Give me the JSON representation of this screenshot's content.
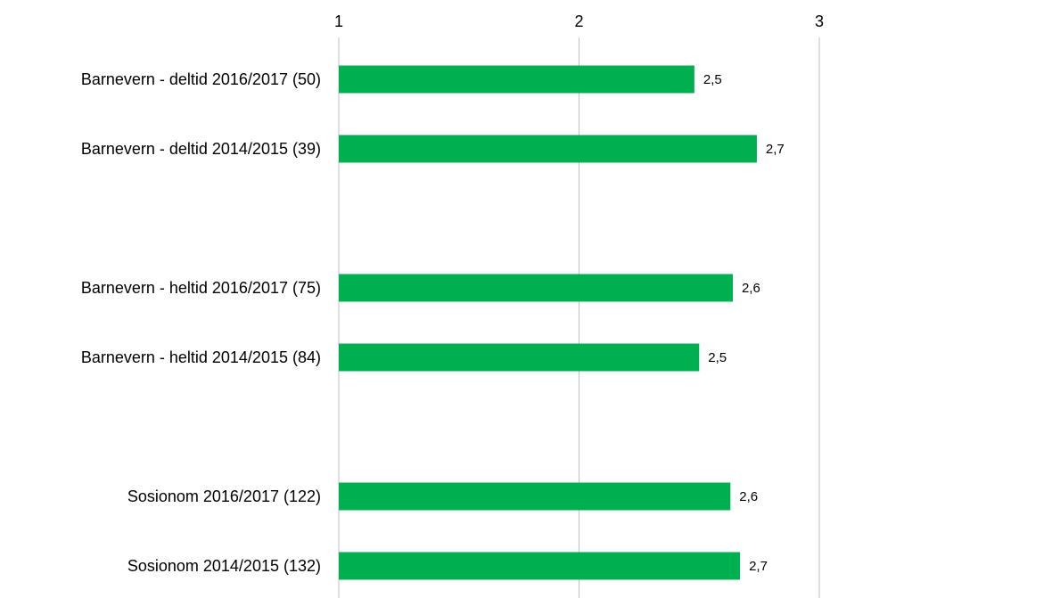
{
  "chart_data": {
    "type": "barh",
    "categories": [
      "Barnevern - deltid 2016/2017 (50)",
      "Barnevern - deltid 2014/2015 (39)",
      null,
      "Barnevern - heltid 2016/2017 (75)",
      "Barnevern - heltid 2014/2015 (84)",
      null,
      "Sosionom 2016/2017 (122)",
      "Sosionom 2014/2015 (132)"
    ],
    "values": [
      2.48,
      2.74,
      null,
      2.64,
      2.5,
      null,
      2.63,
      2.67
    ],
    "value_labels": [
      "2,5",
      "2,7",
      null,
      "2,6",
      "2,5",
      null,
      "2,6",
      "2,7"
    ],
    "color": "#00b050",
    "xlim": [
      1,
      3
    ],
    "xticks": [
      1,
      2,
      3
    ],
    "grid": true
  }
}
